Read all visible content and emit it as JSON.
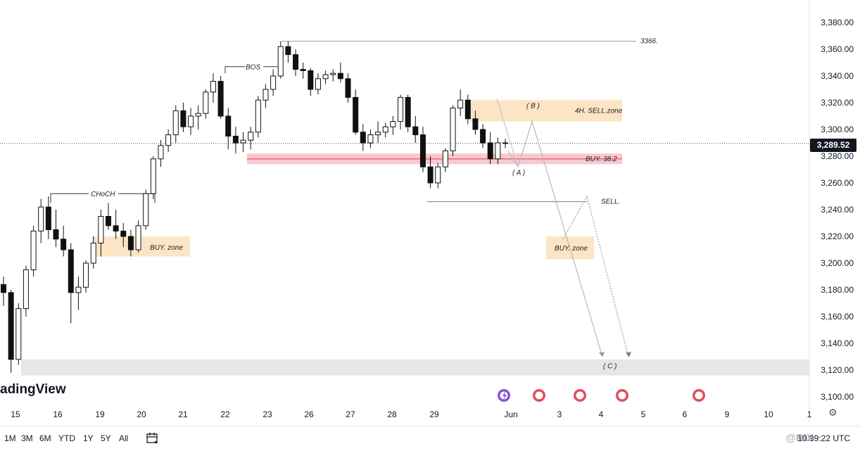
{
  "app": {
    "logo_text": "adingView",
    "watermark": "@RIX",
    "time": "10:39:22 UTC",
    "settings_icon": "gear-icon",
    "calendar_icon": "calendar-icon"
  },
  "ranges": [
    "1M",
    "3M",
    "6M",
    "YTD",
    "1Y",
    "5Y",
    "All"
  ],
  "chart_data": {
    "type": "candlestick",
    "title": "",
    "ylim": [
      3090,
      3390
    ],
    "y_ticks": [
      3100,
      3120,
      3140,
      3160,
      3180,
      3200,
      3220,
      3240,
      3260,
      3280,
      3300,
      3320,
      3340,
      3360,
      3380
    ],
    "y_tick_labels": [
      "3,100.00",
      "3,120.00",
      "3,140.00",
      "3,160.00",
      "3,180.00",
      "3,200.00",
      "3,220.00",
      "3,240.00",
      "3,260.00",
      "3,280.00",
      "3,300.00",
      "3,320.00",
      "3,340.00",
      "3,360.00",
      "3,380.00"
    ],
    "x_labels": [
      "15",
      "16",
      "19",
      "20",
      "21",
      "22",
      "23",
      "26",
      "27",
      "28",
      "29",
      "Jun",
      "3",
      "4",
      "5",
      "6",
      "9",
      "10",
      "1"
    ],
    "current_price": 3289.52,
    "current_price_label": "3,289.52",
    "candles": [
      [
        3184,
        3190,
        3168,
        3178
      ],
      [
        3178,
        3180,
        3118,
        3128
      ],
      [
        3128,
        3170,
        3124,
        3166
      ],
      [
        3166,
        3198,
        3160,
        3195
      ],
      [
        3195,
        3228,
        3190,
        3224
      ],
      [
        3224,
        3248,
        3215,
        3242
      ],
      [
        3242,
        3250,
        3218,
        3225
      ],
      [
        3225,
        3240,
        3212,
        3218
      ],
      [
        3218,
        3228,
        3205,
        3210
      ],
      [
        3210,
        3215,
        3155,
        3178
      ],
      [
        3178,
        3190,
        3165,
        3182
      ],
      [
        3182,
        3202,
        3178,
        3200
      ],
      [
        3200,
        3220,
        3196,
        3215
      ],
      [
        3215,
        3240,
        3205,
        3235
      ],
      [
        3235,
        3245,
        3225,
        3228
      ],
      [
        3228,
        3240,
        3218,
        3224
      ],
      [
        3224,
        3230,
        3212,
        3220
      ],
      [
        3220,
        3225,
        3205,
        3210
      ],
      [
        3210,
        3232,
        3208,
        3228
      ],
      [
        3228,
        3255,
        3225,
        3252
      ],
      [
        3252,
        3280,
        3248,
        3278
      ],
      [
        3278,
        3292,
        3272,
        3288
      ],
      [
        3288,
        3300,
        3283,
        3296
      ],
      [
        3296,
        3318,
        3290,
        3314
      ],
      [
        3314,
        3320,
        3298,
        3302
      ],
      [
        3302,
        3316,
        3296,
        3310
      ],
      [
        3310,
        3318,
        3300,
        3312
      ],
      [
        3312,
        3330,
        3308,
        3328
      ],
      [
        3328,
        3342,
        3320,
        3336
      ],
      [
        3336,
        3340,
        3308,
        3310
      ],
      [
        3310,
        3316,
        3285,
        3295
      ],
      [
        3295,
        3302,
        3282,
        3290
      ],
      [
        3290,
        3298,
        3283,
        3292
      ],
      [
        3292,
        3302,
        3285,
        3298
      ],
      [
        3298,
        3325,
        3294,
        3322
      ],
      [
        3322,
        3334,
        3316,
        3330
      ],
      [
        3330,
        3345,
        3325,
        3340
      ],
      [
        3340,
        3366,
        3338,
        3362
      ],
      [
        3362,
        3366,
        3350,
        3356
      ],
      [
        3356,
        3360,
        3340,
        3345
      ],
      [
        3345,
        3350,
        3338,
        3344
      ],
      [
        3344,
        3346,
        3325,
        3330
      ],
      [
        3330,
        3342,
        3326,
        3338
      ],
      [
        3338,
        3344,
        3334,
        3341
      ],
      [
        3341,
        3345,
        3336,
        3342
      ],
      [
        3342,
        3350,
        3335,
        3338
      ],
      [
        3338,
        3342,
        3320,
        3324
      ],
      [
        3324,
        3330,
        3296,
        3298
      ],
      [
        3298,
        3304,
        3284,
        3290
      ],
      [
        3290,
        3300,
        3286,
        3296
      ],
      [
        3296,
        3306,
        3290,
        3298
      ],
      [
        3298,
        3305,
        3294,
        3302
      ],
      [
        3302,
        3310,
        3296,
        3306
      ],
      [
        3306,
        3326,
        3300,
        3324
      ],
      [
        3324,
        3326,
        3298,
        3302
      ],
      [
        3302,
        3310,
        3290,
        3296
      ],
      [
        3296,
        3302,
        3268,
        3272
      ],
      [
        3272,
        3280,
        3256,
        3260
      ],
      [
        3260,
        3275,
        3256,
        3272
      ],
      [
        3272,
        3286,
        3268,
        3284
      ],
      [
        3284,
        3318,
        3280,
        3316
      ],
      [
        3316,
        3330,
        3310,
        3322
      ],
      [
        3322,
        3326,
        3304,
        3308
      ],
      [
        3308,
        3314,
        3296,
        3300
      ],
      [
        3300,
        3304,
        3286,
        3290
      ],
      [
        3290,
        3298,
        3274,
        3278
      ],
      [
        3278,
        3294,
        3274,
        3290
      ],
      [
        3290,
        3293,
        3286,
        3289.52
      ]
    ],
    "annotations": {
      "level_3366": "3366.",
      "bos": "BOS",
      "choch": "CHoCH",
      "buy_zone_left": "BUY. zone",
      "sell_zone_4h": "4H. SELL.zone",
      "buy_38": "BUY. 38.2",
      "sell": "SELL.",
      "buy_zone_right": "BUY. zone",
      "wave_a": "( A )",
      "wave_b": "( B )",
      "wave_c": "( C )"
    }
  }
}
